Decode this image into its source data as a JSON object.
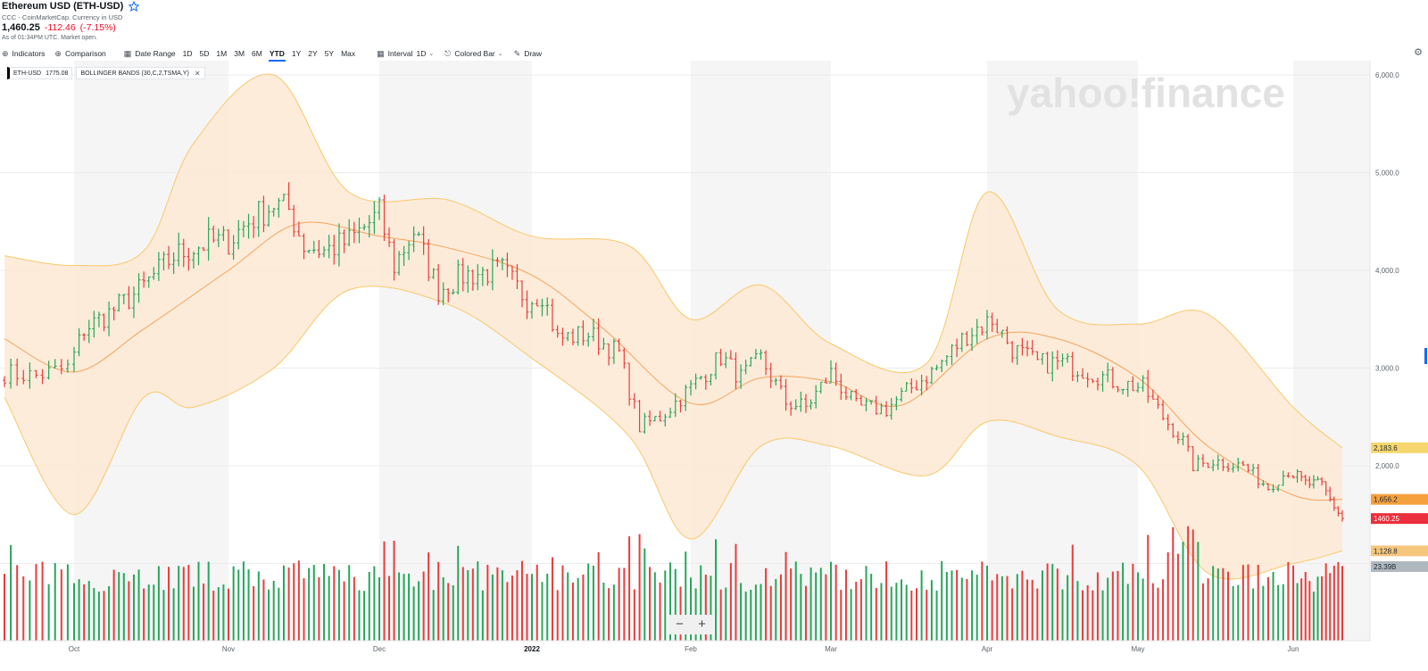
{
  "header": {
    "title": "Ethereum USD (ETH-USD)",
    "source": "CCC - CoinMarketCap. Currency in USD",
    "price": "1,460.25",
    "change": "-112.46",
    "change_pct": "(-7.15%)",
    "as_of": "As of 01:34PM UTC. Market open."
  },
  "toolbar": {
    "indicators": "Indicators",
    "comparison": "Comparison",
    "date_range": "Date Range",
    "ranges": [
      "1D",
      "5D",
      "1M",
      "3M",
      "6M",
      "YTD",
      "1Y",
      "2Y",
      "5Y",
      "Max"
    ],
    "active_range": "YTD",
    "interval": "Interval",
    "interval_value": "1D",
    "chart_type": "Colored Bar",
    "draw": "Draw"
  },
  "legend": {
    "symbol": "ETH-USD",
    "symbol_value": "1775.08",
    "indicator": "BOLLINGER BANDS (30,C,2,TSMA,Y)"
  },
  "watermark": "yahoo!finance",
  "zoom": {
    "minus": "−",
    "plus": "+"
  },
  "colors": {
    "up": "#26a65b",
    "down": "#eb3b3b",
    "band_fill": "#fde9d4",
    "band_line": "#f9c86a",
    "middle_line": "#f5a25a",
    "tag_upper": "#f5d76e",
    "tag_middle": "#f5a03c",
    "tag_price": "#eb2f3c",
    "tag_lower": "#f6c67c",
    "tag_volume": "#b0b8bf"
  },
  "chart_data": {
    "type": "bar",
    "chart_style": "Colored Bar (OHLC) with Bollinger Bands and volume",
    "x_axis_labels": [
      "Oct",
      "Nov",
      "Dec",
      "2022",
      "Feb",
      "Mar",
      "Apr",
      "May",
      "Jun"
    ],
    "y_axis_labels": [
      "6,000.0",
      "5,000.0",
      "4,000.0",
      "3,000.0",
      "2,000.0"
    ],
    "ylim": [
      1000,
      6200
    ],
    "shaded_months": [
      "Oct",
      "Dec",
      "Feb",
      "Apr",
      "Jun"
    ],
    "price_tags": {
      "upper_band": "2,183.6",
      "middle_band": "1,656.2",
      "last_price": "1460.25",
      "lower_band": "1,128.8",
      "volume": "23.39B"
    },
    "close_series": [
      {
        "date": "Sep 20",
        "close": 2950
      },
      {
        "date": "Sep 25",
        "close": 2920
      },
      {
        "date": "Sep 30",
        "close": 3000
      },
      {
        "date": "Oct 3",
        "close": 3400
      },
      {
        "date": "Oct 8",
        "close": 3560
      },
      {
        "date": "Oct 14",
        "close": 3790
      },
      {
        "date": "Oct 21",
        "close": 4150
      },
      {
        "date": "Oct 28",
        "close": 4290
      },
      {
        "date": "Nov 1",
        "close": 4300
      },
      {
        "date": "Nov 5",
        "close": 4500
      },
      {
        "date": "Nov 10",
        "close": 4680
      },
      {
        "date": "Nov 13",
        "close": 4620
      },
      {
        "date": "Nov 16",
        "close": 4260
      },
      {
        "date": "Nov 20",
        "close": 4200
      },
      {
        "date": "Nov 25",
        "close": 4300
      },
      {
        "date": "Dec 1",
        "close": 4580
      },
      {
        "date": "Dec 4",
        "close": 4050
      },
      {
        "date": "Dec 8",
        "close": 4400
      },
      {
        "date": "Dec 13",
        "close": 3800
      },
      {
        "date": "Dec 18",
        "close": 3950
      },
      {
        "date": "Dec 26",
        "close": 4000
      },
      {
        "date": "Dec 31",
        "close": 3700
      },
      {
        "date": "Jan 3",
        "close": 3770
      },
      {
        "date": "Jan 6",
        "close": 3300
      },
      {
        "date": "Jan 12",
        "close": 3350
      },
      {
        "date": "Jan 18",
        "close": 3150
      },
      {
        "date": "Jan 22",
        "close": 2400
      },
      {
        "date": "Jan 26",
        "close": 2500
      },
      {
        "date": "Feb 1",
        "close": 2800
      },
      {
        "date": "Feb 7",
        "close": 3120
      },
      {
        "date": "Feb 11",
        "close": 2900
      },
      {
        "date": "Feb 15",
        "close": 3100
      },
      {
        "date": "Feb 20",
        "close": 2650
      },
      {
        "date": "Feb 24",
        "close": 2600
      },
      {
        "date": "Mar 1",
        "close": 2950
      },
      {
        "date": "Mar 6",
        "close": 2600
      },
      {
        "date": "Mar 12",
        "close": 2580
      },
      {
        "date": "Mar 17",
        "close": 2800
      },
      {
        "date": "Mar 22",
        "close": 3000
      },
      {
        "date": "Mar 28",
        "close": 3350
      },
      {
        "date": "Apr 2",
        "close": 3500
      },
      {
        "date": "Apr 6",
        "close": 3200
      },
      {
        "date": "Apr 11",
        "close": 3050
      },
      {
        "date": "Apr 16",
        "close": 3050
      },
      {
        "date": "Apr 22",
        "close": 2950
      },
      {
        "date": "Apr 27",
        "close": 2850
      },
      {
        "date": "May 2",
        "close": 2800
      },
      {
        "date": "May 6",
        "close": 2500
      },
      {
        "date": "May 10",
        "close": 2250
      },
      {
        "date": "May 12",
        "close": 2000
      },
      {
        "date": "May 16",
        "close": 2050
      },
      {
        "date": "May 22",
        "close": 2000
      },
      {
        "date": "May 27",
        "close": 1780
      },
      {
        "date": "May 31",
        "close": 1950
      },
      {
        "date": "Jun 4",
        "close": 1820
      },
      {
        "date": "Jun 8",
        "close": 1800
      },
      {
        "date": "Jun 10",
        "close": 1650
      },
      {
        "date": "Jun 13",
        "close": 1460
      }
    ],
    "middle_band": [
      {
        "date": "Sep 20",
        "value": 3300
      },
      {
        "date": "Oct 1",
        "value": 2960
      },
      {
        "date": "Oct 15",
        "value": 3400
      },
      {
        "date": "Nov 1",
        "value": 4000
      },
      {
        "date": "Nov 15",
        "value": 4480
      },
      {
        "date": "Dec 1",
        "value": 4350
      },
      {
        "date": "Dec 15",
        "value": 4230
      },
      {
        "date": "Jan 1",
        "value": 3950
      },
      {
        "date": "Jan 15",
        "value": 3400
      },
      {
        "date": "Feb 1",
        "value": 2640
      },
      {
        "date": "Feb 15",
        "value": 2900
      },
      {
        "date": "Mar 1",
        "value": 2860
      },
      {
        "date": "Mar 15",
        "value": 2620
      },
      {
        "date": "Apr 1",
        "value": 3300
      },
      {
        "date": "Apr 15",
        "value": 3300
      },
      {
        "date": "May 1",
        "value": 2900
      },
      {
        "date": "May 15",
        "value": 2200
      },
      {
        "date": "Jun 1",
        "value": 1700
      },
      {
        "date": "Jun 13",
        "value": 1656
      }
    ],
    "upper_band": [
      {
        "date": "Sep 20",
        "value": 4150
      },
      {
        "date": "Oct 1",
        "value": 4050
      },
      {
        "date": "Oct 15",
        "value": 4200
      },
      {
        "date": "Oct 25",
        "value": 5300
      },
      {
        "date": "Nov 10",
        "value": 6000
      },
      {
        "date": "Nov 25",
        "value": 4800
      },
      {
        "date": "Dec 15",
        "value": 4720
      },
      {
        "date": "Jan 1",
        "value": 4350
      },
      {
        "date": "Jan 20",
        "value": 4250
      },
      {
        "date": "Feb 1",
        "value": 3500
      },
      {
        "date": "Feb 15",
        "value": 3850
      },
      {
        "date": "Mar 1",
        "value": 3250
      },
      {
        "date": "Mar 20",
        "value": 3050
      },
      {
        "date": "Apr 1",
        "value": 4800
      },
      {
        "date": "Apr 15",
        "value": 3600
      },
      {
        "date": "May 1",
        "value": 3450
      },
      {
        "date": "May 15",
        "value": 3550
      },
      {
        "date": "Jun 1",
        "value": 2600
      },
      {
        "date": "Jun 13",
        "value": 2184
      }
    ],
    "lower_band": [
      {
        "date": "Sep 20",
        "value": 2700
      },
      {
        "date": "Oct 1",
        "value": 1500
      },
      {
        "date": "Oct 15",
        "value": 2700
      },
      {
        "date": "Oct 25",
        "value": 2600
      },
      {
        "date": "Nov 10",
        "value": 3000
      },
      {
        "date": "Nov 25",
        "value": 3800
      },
      {
        "date": "Dec 15",
        "value": 3650
      },
      {
        "date": "Jan 1",
        "value": 3100
      },
      {
        "date": "Jan 20",
        "value": 2300
      },
      {
        "date": "Feb 1",
        "value": 1250
      },
      {
        "date": "Feb 15",
        "value": 2200
      },
      {
        "date": "Mar 1",
        "value": 2200
      },
      {
        "date": "Mar 20",
        "value": 1900
      },
      {
        "date": "Apr 1",
        "value": 2450
      },
      {
        "date": "Apr 15",
        "value": 2300
      },
      {
        "date": "May 1",
        "value": 2000
      },
      {
        "date": "May 15",
        "value": 900
      },
      {
        "date": "Jun 1",
        "value": 1000
      },
      {
        "date": "Jun 13",
        "value": 1129
      }
    ]
  }
}
